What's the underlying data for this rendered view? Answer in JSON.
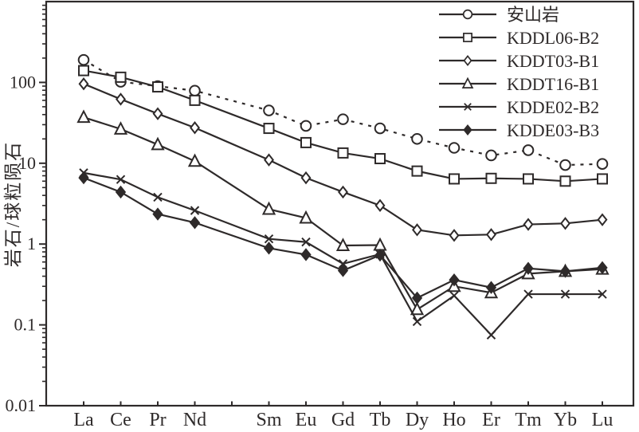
{
  "figure": {
    "background": "#ffffff",
    "ink_color": "#2e2a2a"
  },
  "chart_data": {
    "type": "line",
    "yscale": "log",
    "ylim": [
      0.01,
      1000
    ],
    "ylabel": "岩石/球粒陨石",
    "ytick_labels": [
      "100",
      "10",
      "1",
      "0.1",
      "0.01"
    ],
    "ytick_values": [
      100,
      10,
      1,
      0.1,
      0.01
    ],
    "grid": false,
    "legend_position": "top-right-inside",
    "categories": [
      "La",
      "Ce",
      "Pr",
      "Nd",
      "Sm",
      "Eu",
      "Gd",
      "Tb",
      "Dy",
      "Ho",
      "Er",
      "Tm",
      "Yb",
      "Lu"
    ],
    "unlabeled_tick_slot_after": "Nd",
    "total_x_slots": 15,
    "series": [
      {
        "name": "安山岩",
        "marker": "circle-open",
        "line": "dashed",
        "values": [
          190,
          102,
          90,
          79,
          45,
          29,
          35,
          27,
          20,
          15.5,
          12.5,
          14.5,
          9.5,
          9.8
        ]
      },
      {
        "name": "KDDL06-B2",
        "marker": "square-open",
        "line": "solid",
        "values": [
          140,
          116,
          88,
          60,
          27,
          18,
          13.4,
          11.4,
          8.0,
          6.4,
          6.5,
          6.4,
          6.0,
          6.4
        ]
      },
      {
        "name": "KDDT03-B1",
        "marker": "diamond-open",
        "line": "solid",
        "values": [
          96,
          62,
          41,
          27.5,
          11,
          6.6,
          4.4,
          3.0,
          1.5,
          1.28,
          1.31,
          1.75,
          1.8,
          2.0
        ]
      },
      {
        "name": "KDDT16-B1",
        "marker": "triangle-open",
        "line": "solid",
        "values": [
          37,
          26.5,
          17,
          10.6,
          2.7,
          2.1,
          0.96,
          0.97,
          0.155,
          0.3,
          0.25,
          0.43,
          0.46,
          0.49
        ]
      },
      {
        "name": "KDDE02-B2",
        "marker": "x",
        "line": "solid",
        "values": [
          7.6,
          6.3,
          3.8,
          2.6,
          1.16,
          1.06,
          0.57,
          0.75,
          0.11,
          0.23,
          0.075,
          0.24,
          0.24,
          0.24
        ]
      },
      {
        "name": "KDDE03-B3",
        "marker": "diamond-filled",
        "line": "solid",
        "values": [
          6.6,
          4.4,
          2.35,
          1.84,
          0.89,
          0.74,
          0.47,
          0.73,
          0.215,
          0.36,
          0.29,
          0.5,
          0.46,
          0.51
        ]
      }
    ]
  }
}
